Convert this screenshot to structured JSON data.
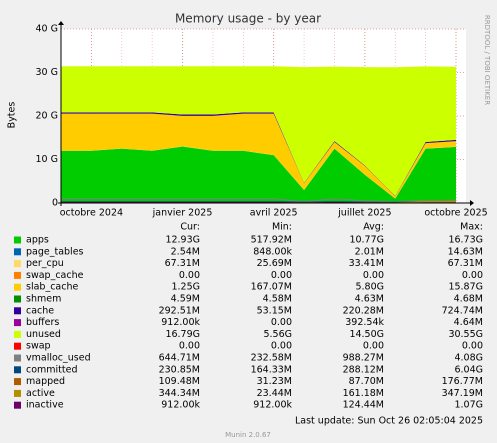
{
  "chart_data": {
    "type": "area",
    "title": "Memory usage - by year",
    "y_label": "Bytes",
    "side_text": "RRDTOOL / TOBI OETIKER",
    "x": [
      "2024-09",
      "2024-10",
      "2024-11",
      "2024-12",
      "2025-01",
      "2025-02",
      "2025-03",
      "2025-04",
      "2025-05",
      "2025-06",
      "2025-07",
      "2025-08",
      "2025-09",
      "2025-10"
    ],
    "xticks": [
      {
        "value": "2024-10",
        "label": "octobre 2024"
      },
      {
        "value": "2025-01",
        "label": "janvier 2025"
      },
      {
        "value": "2025-04",
        "label": "avril 2025"
      },
      {
        "value": "2025-07",
        "label": "juillet 2025"
      },
      {
        "value": "2025-10",
        "label": "octobre 2025"
      }
    ],
    "ylim": [
      0,
      40000000000
    ],
    "yticks": [
      {
        "value": 0,
        "label": "0"
      },
      {
        "value": 10000000000,
        "label": "10 G"
      },
      {
        "value": 20000000000,
        "label": "20 G"
      },
      {
        "value": 30000000000,
        "label": "30 G"
      },
      {
        "value": 40000000000,
        "label": "40 G"
      }
    ],
    "grid": true,
    "stat_headers": [
      "Cur:",
      "Min:",
      "Avg:",
      "Max:"
    ],
    "series": [
      {
        "name": "apps",
        "color": "#00cc00",
        "style": "area",
        "stats": [
          "12.93G",
          "517.92M",
          "10.77G",
          "16.73G"
        ],
        "values": [
          12000000000,
          12000000000,
          12500000000,
          12000000000,
          13000000000,
          12000000000,
          12000000000,
          11000000000,
          3000000000,
          12500000000,
          6500000000,
          1000000000,
          12500000000,
          12900000000
        ]
      },
      {
        "name": "page_tables",
        "color": "#0066b3",
        "style": "area",
        "stats": [
          "2.54M",
          "848.00k",
          "2.01M",
          "14.63M"
        ],
        "values": [
          2000000,
          2000000,
          2000000,
          2000000,
          2000000,
          2000000,
          2000000,
          2000000,
          2000000,
          2000000,
          2000000,
          2000000,
          2500000,
          2540000
        ]
      },
      {
        "name": "per_cpu",
        "color": "#ffd966",
        "style": "area",
        "stats": [
          "67.31M",
          "25.69M",
          "33.41M",
          "67.31M"
        ],
        "values": [
          30000000,
          30000000,
          30000000,
          30000000,
          30000000,
          30000000,
          30000000,
          30000000,
          30000000,
          30000000,
          30000000,
          30000000,
          60000000,
          67310000
        ]
      },
      {
        "name": "swap_cache",
        "color": "#ff8000",
        "style": "area",
        "stats": [
          "0.00",
          "0.00",
          "0.00",
          "0.00"
        ],
        "values": [
          0,
          0,
          0,
          0,
          0,
          0,
          0,
          0,
          0,
          0,
          0,
          0,
          0,
          0
        ]
      },
      {
        "name": "slab_cache",
        "color": "#ffcc00",
        "style": "area",
        "stats": [
          "1.25G",
          "167.07M",
          "5.80G",
          "15.87G"
        ],
        "values": [
          8500000000,
          8500000000,
          8000000000,
          8500000000,
          7000000000,
          8000000000,
          8500000000,
          9500000000,
          1500000000,
          1500000000,
          2000000000,
          500000000,
          1200000000,
          1250000000
        ]
      },
      {
        "name": "shmem",
        "color": "#008f00",
        "style": "area",
        "stats": [
          "4.59M",
          "4.58M",
          "4.63M",
          "4.68M"
        ],
        "values": [
          4600000,
          4600000,
          4600000,
          4600000,
          4600000,
          4600000,
          4600000,
          4600000,
          4600000,
          4600000,
          4600000,
          4600000,
          4600000,
          4590000
        ]
      },
      {
        "name": "cache",
        "color": "#330099",
        "style": "area",
        "stats": [
          "292.51M",
          "53.15M",
          "220.28M",
          "724.74M"
        ],
        "values": [
          300000000,
          300000000,
          300000000,
          300000000,
          300000000,
          300000000,
          300000000,
          300000000,
          100000000,
          200000000,
          100000000,
          60000000,
          250000000,
          292510000
        ]
      },
      {
        "name": "buffers",
        "color": "#990099",
        "style": "area",
        "stats": [
          "912.00k",
          "0.00",
          "392.54k",
          "4.64M"
        ],
        "values": [
          400000,
          400000,
          400000,
          400000,
          400000,
          400000,
          400000,
          400000,
          400000,
          400000,
          400000,
          400000,
          900000,
          912000
        ]
      },
      {
        "name": "unused",
        "color": "#ccff00",
        "style": "area",
        "stats": [
          "16.79G",
          "5.56G",
          "14.50G",
          "30.55G"
        ],
        "values": [
          10600000000,
          10600000000,
          10600000000,
          10600000000,
          11100000000,
          11100000000,
          10600000000,
          10600000000,
          26600000000,
          17100000000,
          22600000000,
          29600000000,
          17400000000,
          16790000000
        ]
      },
      {
        "name": "swap",
        "color": "#ff0000",
        "style": "area",
        "stats": [
          "0.00",
          "0.00",
          "0.00",
          "0.00"
        ],
        "values": [
          0,
          0,
          0,
          0,
          0,
          0,
          0,
          0,
          0,
          0,
          0,
          0,
          0,
          0
        ]
      },
      {
        "name": "vmalloc_used",
        "color": "#808080",
        "style": "line",
        "stats": [
          "644.71M",
          "232.58M",
          "988.27M",
          "4.08G"
        ],
        "values": [
          1000000000,
          1000000000,
          1000000000,
          1000000000,
          1000000000,
          1000000000,
          1000000000,
          1000000000,
          300000000,
          1000000000,
          500000000,
          250000000,
          600000000,
          644710000
        ]
      },
      {
        "name": "committed",
        "color": "#00487d",
        "style": "line",
        "stats": [
          "230.85M",
          "164.33M",
          "288.12M",
          "6.04G"
        ],
        "values": [
          280000000,
          280000000,
          280000000,
          280000000,
          280000000,
          280000000,
          280000000,
          280000000,
          200000000,
          280000000,
          200000000,
          170000000,
          230000000,
          230850000
        ]
      },
      {
        "name": "mapped",
        "color": "#b35a00",
        "style": "line",
        "stats": [
          "109.48M",
          "31.23M",
          "87.70M",
          "176.77M"
        ],
        "values": [
          90000000,
          90000000,
          90000000,
          90000000,
          90000000,
          90000000,
          90000000,
          90000000,
          40000000,
          90000000,
          50000000,
          35000000,
          100000000,
          109480000
        ]
      },
      {
        "name": "active",
        "color": "#b38f00",
        "style": "line",
        "stats": [
          "344.34M",
          "23.44M",
          "161.18M",
          "347.19M"
        ],
        "values": [
          150000000,
          150000000,
          150000000,
          150000000,
          150000000,
          150000000,
          150000000,
          150000000,
          40000000,
          150000000,
          60000000,
          30000000,
          300000000,
          344340000
        ]
      },
      {
        "name": "inactive",
        "color": "#6b006b",
        "style": "line",
        "stats": [
          "912.00k",
          "912.00k",
          "124.44M",
          "1.07G"
        ],
        "values": [
          130000000,
          130000000,
          130000000,
          130000000,
          130000000,
          130000000,
          130000000,
          130000000,
          30000000,
          130000000,
          50000000,
          912000,
          912000,
          912000
        ]
      }
    ],
    "last_update": "Last update: Sun Oct 26 02:05:04 2025",
    "footer": "Munin 2.0.67"
  }
}
